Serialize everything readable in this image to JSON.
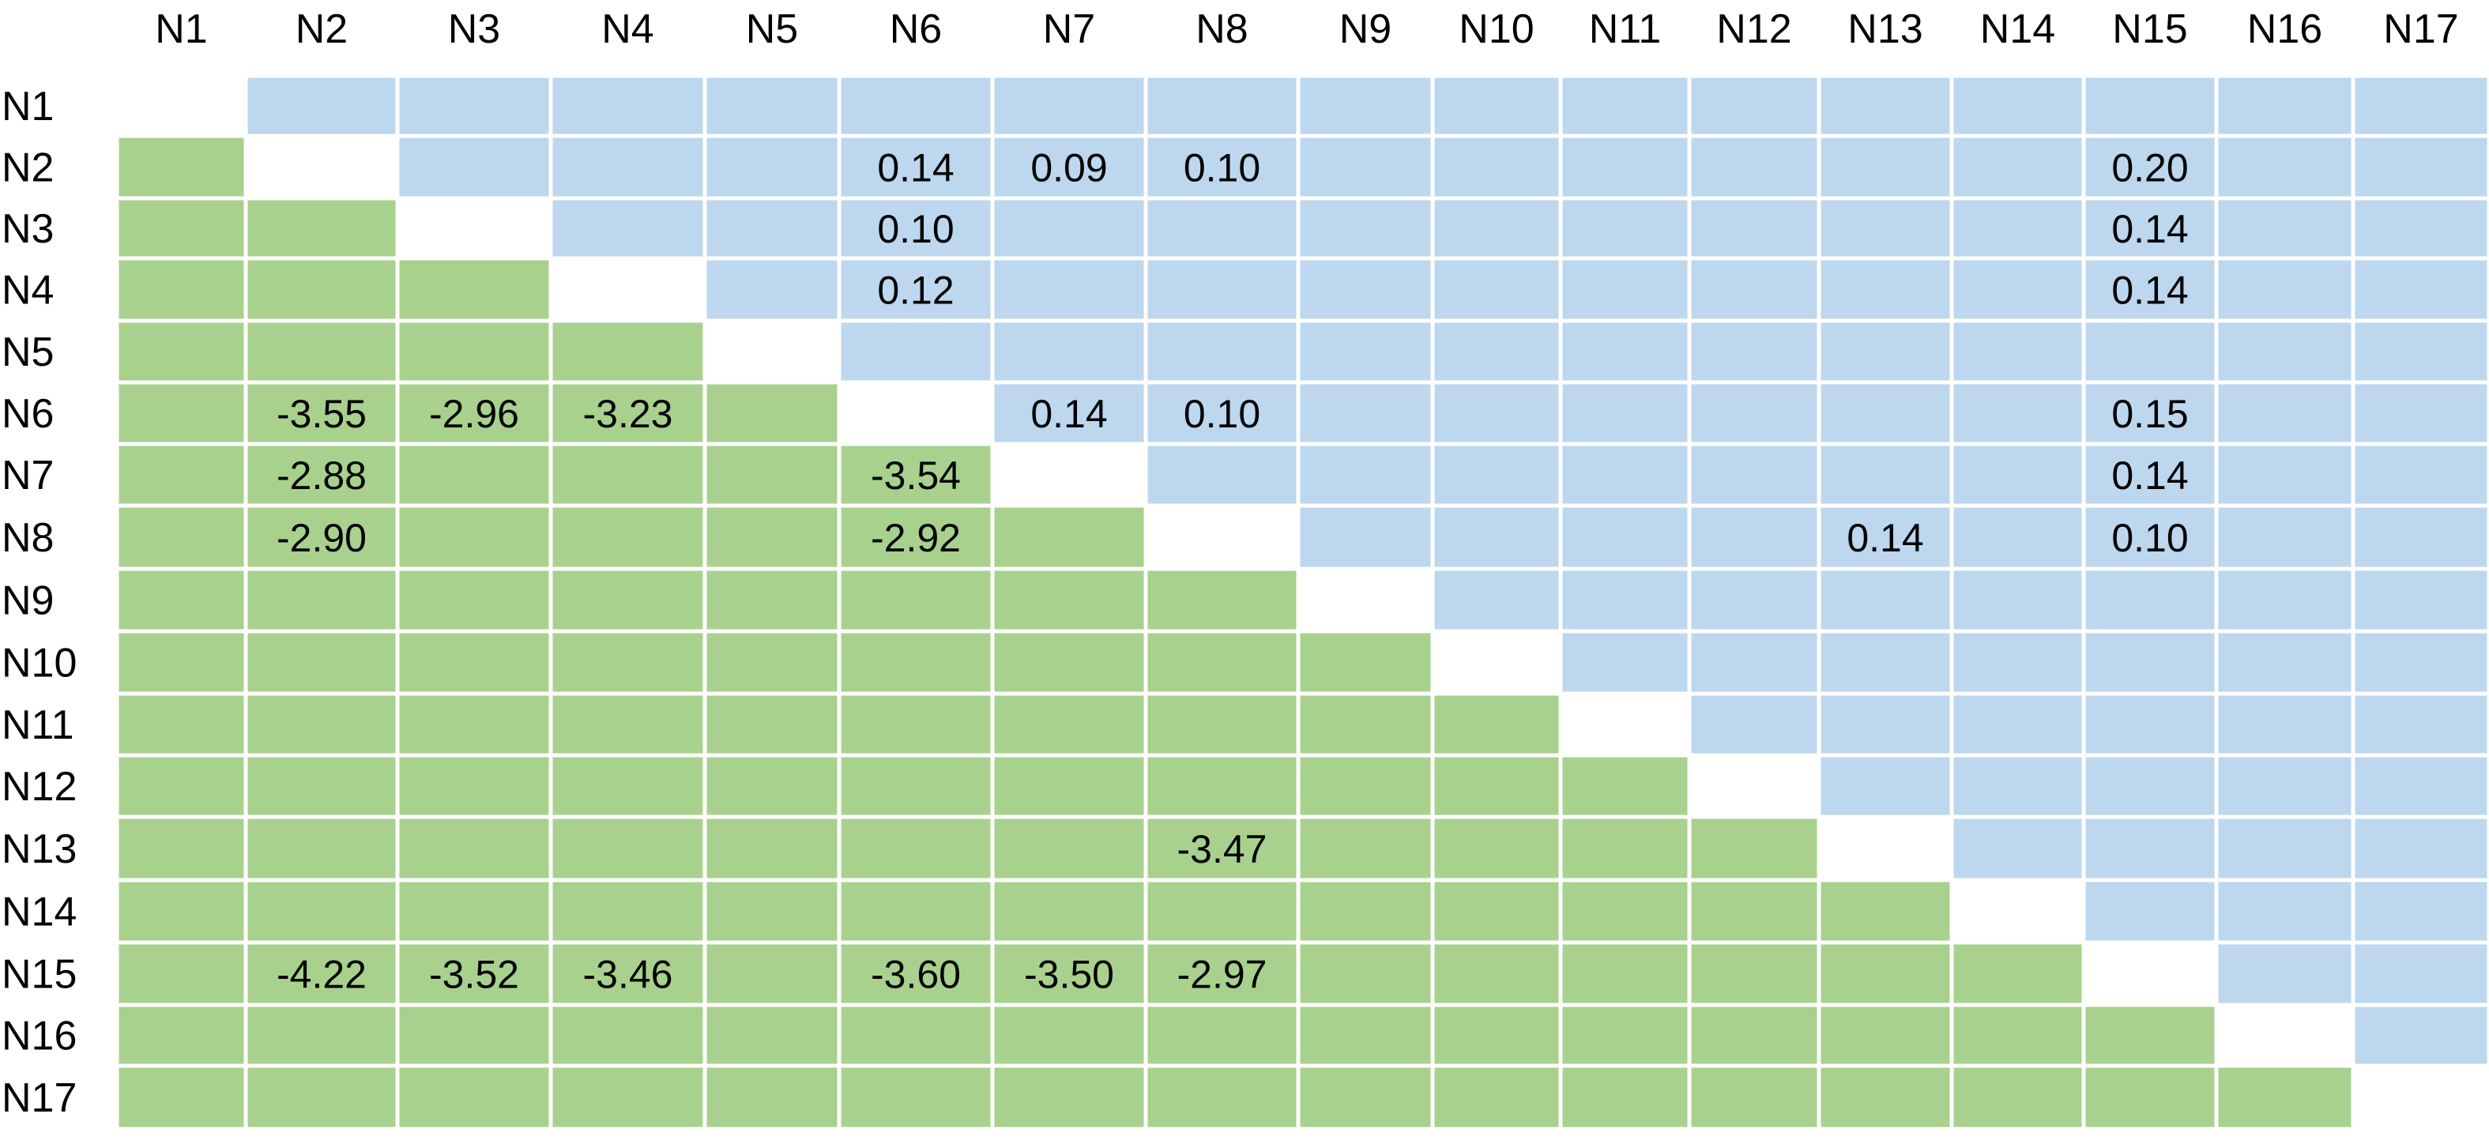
{
  "chart_data": {
    "type": "heatmap",
    "title": "",
    "labels": [
      "N1",
      "N2",
      "N3",
      "N4",
      "N5",
      "N6",
      "N7",
      "N8",
      "N9",
      "N10",
      "N11",
      "N12",
      "N13",
      "N14",
      "N15",
      "N16",
      "N17"
    ],
    "colors": {
      "upper": "#BDD7EE",
      "lower": "#A9D18E",
      "diagonal": "#FFFFFF"
    },
    "upper_values": [
      {
        "row": "N2",
        "col": "N6",
        "value": "0.14"
      },
      {
        "row": "N2",
        "col": "N7",
        "value": "0.09"
      },
      {
        "row": "N2",
        "col": "N8",
        "value": "0.10"
      },
      {
        "row": "N2",
        "col": "N15",
        "value": "0.20"
      },
      {
        "row": "N3",
        "col": "N6",
        "value": "0.10"
      },
      {
        "row": "N3",
        "col": "N15",
        "value": "0.14"
      },
      {
        "row": "N4",
        "col": "N6",
        "value": "0.12"
      },
      {
        "row": "N4",
        "col": "N15",
        "value": "0.14"
      },
      {
        "row": "N6",
        "col": "N7",
        "value": "0.14"
      },
      {
        "row": "N6",
        "col": "N8",
        "value": "0.10"
      },
      {
        "row": "N6",
        "col": "N15",
        "value": "0.15"
      },
      {
        "row": "N7",
        "col": "N15",
        "value": "0.14"
      },
      {
        "row": "N8",
        "col": "N13",
        "value": "0.14"
      },
      {
        "row": "N8",
        "col": "N15",
        "value": "0.10"
      }
    ],
    "lower_values": [
      {
        "row": "N6",
        "col": "N2",
        "value": "-3.55"
      },
      {
        "row": "N6",
        "col": "N3",
        "value": "-2.96"
      },
      {
        "row": "N6",
        "col": "N4",
        "value": "-3.23"
      },
      {
        "row": "N7",
        "col": "N2",
        "value": "-2.88"
      },
      {
        "row": "N7",
        "col": "N6",
        "value": "-3.54"
      },
      {
        "row": "N8",
        "col": "N2",
        "value": "-2.90"
      },
      {
        "row": "N8",
        "col": "N6",
        "value": "-2.92"
      },
      {
        "row": "N13",
        "col": "N8",
        "value": "-3.47"
      },
      {
        "row": "N15",
        "col": "N2",
        "value": "-4.22"
      },
      {
        "row": "N15",
        "col": "N3",
        "value": "-3.52"
      },
      {
        "row": "N15",
        "col": "N4",
        "value": "-3.46"
      },
      {
        "row": "N15",
        "col": "N6",
        "value": "-3.60"
      },
      {
        "row": "N15",
        "col": "N7",
        "value": "-3.50"
      },
      {
        "row": "N15",
        "col": "N8",
        "value": "-2.97"
      }
    ]
  }
}
